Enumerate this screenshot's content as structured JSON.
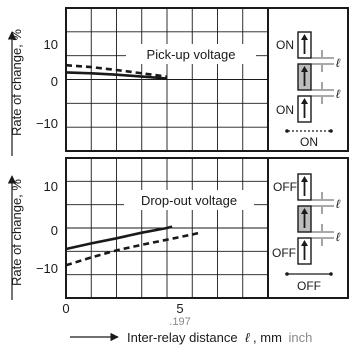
{
  "chart_data": [
    {
      "type": "line",
      "title": "Pick-up voltage",
      "ylabel": "Rate of change, %",
      "ylim": [
        -15,
        15
      ],
      "yticks": [
        "10",
        "0",
        "−10"
      ],
      "xlim": [
        0,
        8
      ],
      "grid": true,
      "series": [
        {
          "style": "solid",
          "x": [
            0,
            1,
            2,
            3,
            4
          ],
          "y": [
            1.5,
            1.3,
            1.0,
            0.6,
            0.2
          ]
        },
        {
          "style": "dashed",
          "x": [
            0,
            1,
            2,
            3,
            4
          ],
          "y": [
            3.0,
            2.6,
            2.0,
            1.3,
            0.6
          ]
        }
      ],
      "diagram": {
        "labels": [
          "ON",
          "ON"
        ],
        "caption": "ON",
        "distance_symbol": "ℓ"
      }
    },
    {
      "type": "line",
      "title": "Drop-out voltage",
      "ylabel": "Rate of change, %",
      "ylim": [
        -15,
        15
      ],
      "yticks": [
        "10",
        "0",
        "−10"
      ],
      "xlim": [
        0,
        8
      ],
      "grid": true,
      "series": [
        {
          "style": "solid",
          "x": [
            0,
            1,
            2,
            3,
            4,
            4.2
          ],
          "y": [
            -4.5,
            -3.3,
            -2.2,
            -1.0,
            0.0,
            0.3
          ]
        },
        {
          "style": "dashed",
          "x": [
            0,
            1,
            2,
            3,
            4,
            5,
            5.3
          ],
          "y": [
            -8.0,
            -6.3,
            -4.8,
            -3.6,
            -2.5,
            -1.4,
            -1.0
          ]
        }
      ],
      "diagram": {
        "labels": [
          "OFF",
          "OFF"
        ],
        "caption": "OFF",
        "distance_symbol": "ℓ"
      }
    }
  ],
  "xaxis": {
    "ticks": [
      "0",
      "5"
    ],
    "tick5_inch": ".197",
    "label": "Inter-relay distance",
    "symbol": "ℓ",
    "unit": ", mm",
    "unit_alt": "inch"
  }
}
